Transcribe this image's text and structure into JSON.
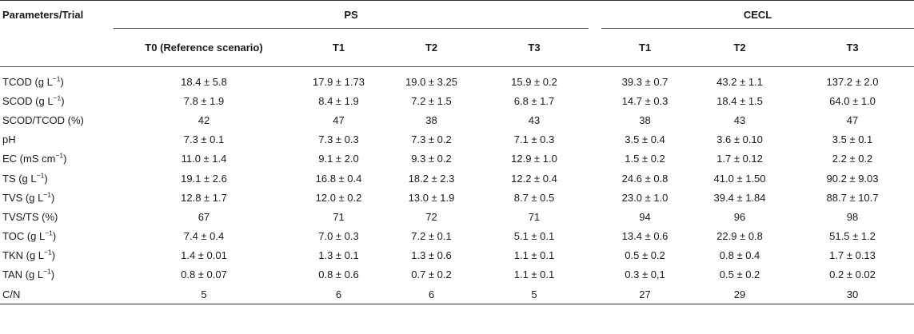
{
  "table": {
    "param_header": "Parameters/Trial",
    "groups": [
      {
        "label": "PS"
      },
      {
        "label": "CECL"
      }
    ],
    "columns": [
      "T0 (Reference scenario)",
      "T1",
      "T2",
      "T3",
      "T1",
      "T2",
      "T3"
    ],
    "rows": [
      {
        "param": "TCOD (g L",
        "sup": "−1",
        "param_tail": ")",
        "values": [
          "18.4 ± 5.8",
          "17.9 ± 1.73",
          "19.0 ± 3.25",
          "15.9 ± 0.2",
          "39.3 ± 0.7",
          "43.2 ± 1.1",
          "137.2 ± 2.0"
        ]
      },
      {
        "param": "SCOD (g L",
        "sup": "−1",
        "param_tail": ")",
        "values": [
          "7.8 ± 1.9",
          "8.4 ± 1.9",
          "7.2 ± 1.5",
          "6.8 ± 1.7",
          "14.7 ± 0.3",
          "18.4 ± 1.5",
          "64.0 ± 1.0"
        ]
      },
      {
        "param": "SCOD/TCOD (%)",
        "sup": "",
        "param_tail": "",
        "values": [
          "42",
          "47",
          "38",
          "43",
          "38",
          "43",
          "47"
        ]
      },
      {
        "param": "pH",
        "sup": "",
        "param_tail": "",
        "values": [
          "7.3 ± 0.1",
          "7.3 ± 0.3",
          "7.3 ± 0.2",
          "7.1 ± 0.3",
          "3.5 ± 0.4",
          "3.6 ± 0.10",
          "3.5 ± 0.1"
        ]
      },
      {
        "param": "EC (mS cm",
        "sup": "−1",
        "param_tail": ")",
        "values": [
          "11.0 ± 1.4",
          "9.1 ± 2.0",
          "9.3 ± 0.2",
          "12.9 ± 1.0",
          "1.5 ± 0.2",
          "1.7 ± 0.12",
          "2.2 ± 0.2"
        ]
      },
      {
        "param": "TS (g L",
        "sup": "−1",
        "param_tail": ")",
        "values": [
          "19.1 ± 2.6",
          "16.8 ± 0.4",
          "18.2 ± 2.3",
          "12.2 ± 0.4",
          "24.6 ± 0.8",
          "41.0 ± 1.50",
          "90.2 ± 9.03"
        ]
      },
      {
        "param": "TVS (g L",
        "sup": "−1",
        "param_tail": ")",
        "values": [
          "12.8 ± 1.7",
          "12.0 ± 0.2",
          "13.0 ± 1.9",
          "8.7 ± 0.5",
          "23.0 ± 1.0",
          "39.4 ± 1.84",
          "88.7 ± 10.7"
        ]
      },
      {
        "param": "TVS/TS (%)",
        "sup": "",
        "param_tail": "",
        "values": [
          "67",
          "71",
          "72",
          "71",
          "94",
          "96",
          "98"
        ]
      },
      {
        "param": "TOC (g L",
        "sup": "−1",
        "param_tail": ")",
        "values": [
          "7.4 ± 0.4",
          "7.0 ± 0.3",
          "7.2 ± 0.1",
          "5.1 ± 0.1",
          "13.4 ± 0.6",
          "22.9 ± 0.8",
          "51.5 ± 1.2"
        ]
      },
      {
        "param": "TKN (g L",
        "sup": "−1",
        "param_tail": ")",
        "values": [
          "1.4 ± 0.01",
          "1.3 ± 0.1",
          "1.3 ± 0.6",
          "1.1 ± 0.1",
          "0.5 ± 0.2",
          "0.8 ± 0.4",
          "1.7 ± 0.13"
        ]
      },
      {
        "param": "TAN (g L",
        "sup": "−1",
        "param_tail": ")",
        "values": [
          "0.8 ± 0.07",
          "0.8 ± 0.6",
          "0.7 ± 0.2",
          "1.1 ± 0.1",
          "0.3 ± 0,1",
          "0.5 ± 0.2",
          "0.2 ± 0.02"
        ]
      },
      {
        "param": "C/N",
        "sup": "",
        "param_tail": "",
        "values": [
          "5",
          "6",
          "6",
          "5",
          "27",
          "29",
          "30"
        ]
      }
    ]
  }
}
